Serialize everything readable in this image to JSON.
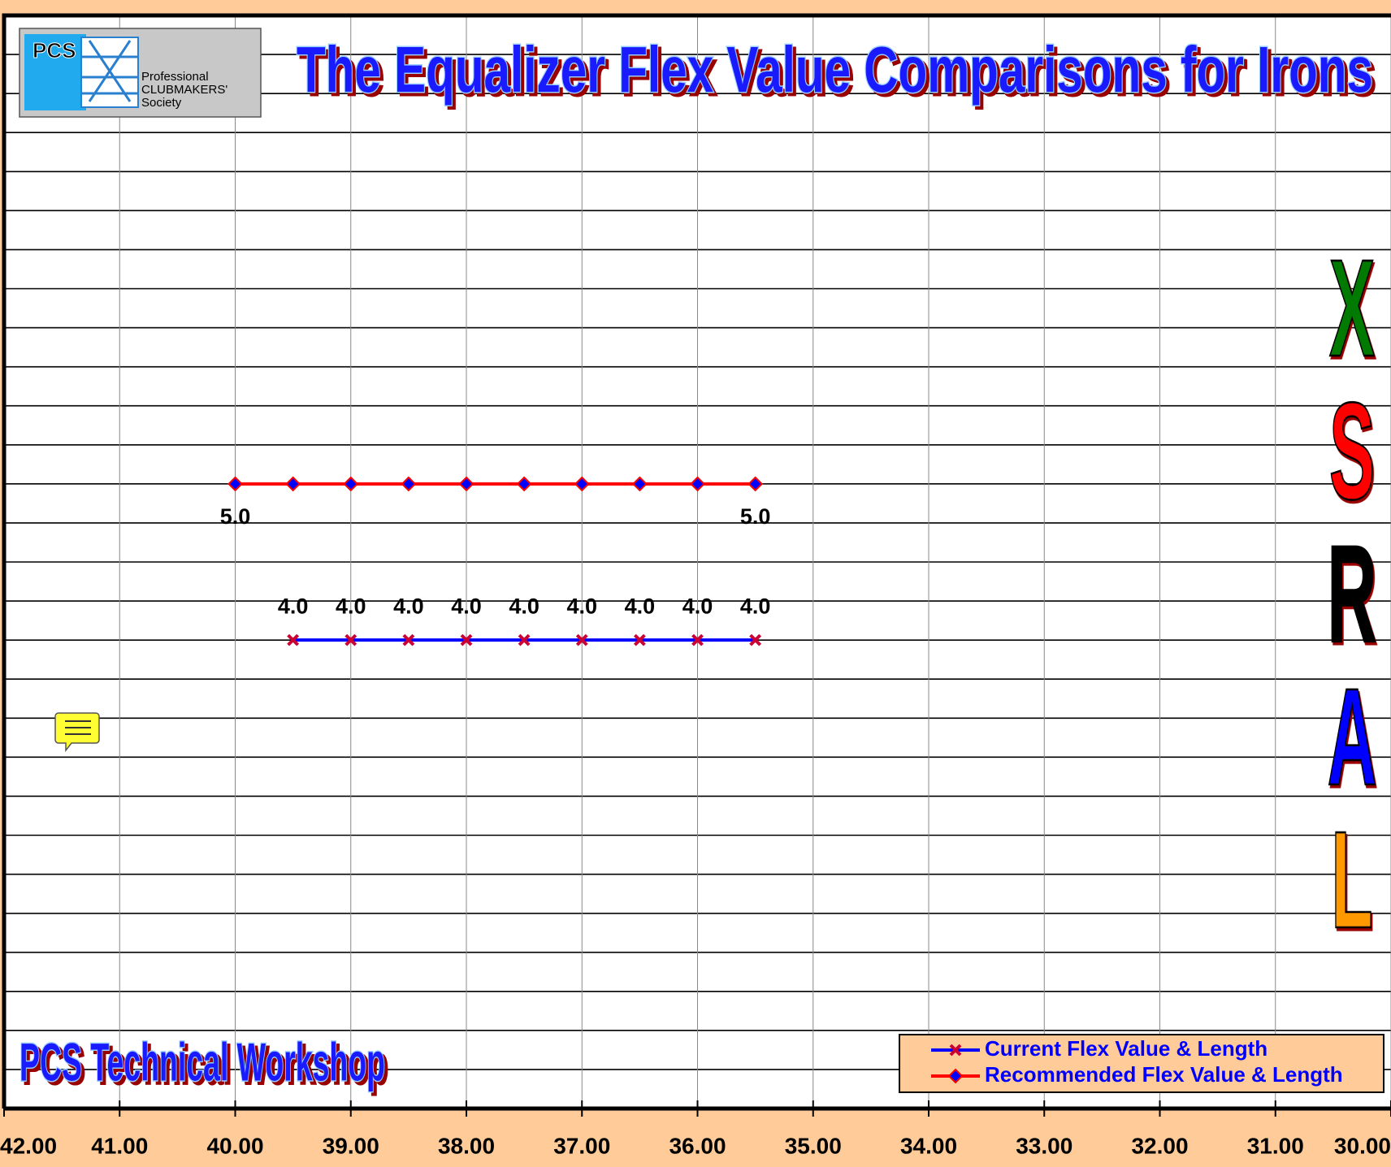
{
  "chart_data": {
    "type": "line",
    "title": "The Equalizer Flex Value Comparisons for Irons",
    "subtitle": "PCS Technical Workshop",
    "logo": {
      "mark": "PCS",
      "lines": [
        "Professional",
        "CLUBMAKERS'",
        "Society"
      ]
    },
    "flex_scale": [
      {
        "letter": "X",
        "color": "#007a00"
      },
      {
        "letter": "S",
        "color": "#ff0000"
      },
      {
        "letter": "R",
        "color": "#000000"
      },
      {
        "letter": "A",
        "color": "#0000ff"
      },
      {
        "letter": "L",
        "color": "#ff9900"
      }
    ],
    "xlim": [
      42,
      30
    ],
    "xticks": [
      {
        "value": 42,
        "label": "42.00"
      },
      {
        "value": 41,
        "label": "41.00"
      },
      {
        "value": 40,
        "label": "40.00"
      },
      {
        "value": 39,
        "label": "39.00"
      },
      {
        "value": 38,
        "label": "38.00"
      },
      {
        "value": 37,
        "label": "37.00"
      },
      {
        "value": 36,
        "label": "36.00"
      },
      {
        "value": 35,
        "label": "35.00"
      },
      {
        "value": 34,
        "label": "34.00"
      },
      {
        "value": 33,
        "label": "33.00"
      },
      {
        "value": 32,
        "label": "32.00"
      },
      {
        "value": 31,
        "label": "31.00"
      },
      {
        "value": 30,
        "label": "30.00"
      }
    ],
    "ylim": [
      1,
      8
    ],
    "yticks": [
      1,
      1.25,
      1.5,
      1.75,
      2,
      2.25,
      2.5,
      2.75,
      3,
      3.25,
      3.5,
      3.75,
      4,
      4.25,
      4.5,
      4.75,
      5,
      5.25,
      5.5,
      5.75,
      6,
      6.25,
      6.5,
      6.75,
      7,
      7.25,
      7.5,
      7.75,
      8
    ],
    "grid": true,
    "legend": "lower right",
    "series": [
      {
        "name": "Current Flex Value & Length",
        "color": "#0000ff",
        "marker": "x",
        "marker_color": "#cc0033",
        "x": [
          39.5,
          39,
          38.5,
          38,
          37.5,
          37,
          36.5,
          36,
          35.5
        ],
        "values": [
          4,
          4,
          4,
          4,
          4,
          4,
          4,
          4,
          4
        ],
        "value_labels": [
          "4.0",
          "4.0",
          "4.0",
          "4.0",
          "4.0",
          "4.0",
          "4.0",
          "4.0",
          "4.0"
        ]
      },
      {
        "name": "Recommended Flex Value & Length",
        "color": "#ff0000",
        "marker": "diamond",
        "marker_color": "#0000ff",
        "x": [
          40,
          39.5,
          39,
          38.5,
          38,
          37.5,
          37,
          36.5,
          36,
          35.5
        ],
        "values": [
          5,
          5,
          5,
          5,
          5,
          5,
          5,
          5,
          5,
          5
        ],
        "value_labels": [
          "5.0",
          null,
          null,
          null,
          null,
          null,
          null,
          null,
          null,
          "5.0"
        ]
      }
    ]
  }
}
